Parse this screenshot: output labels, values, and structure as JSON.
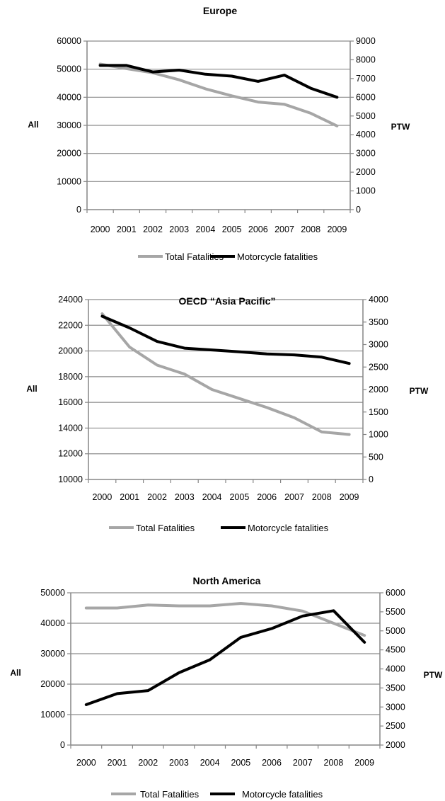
{
  "chart_data": [
    {
      "type": "line",
      "title": "Europe",
      "ylabel": "All",
      "y2label": "PTW",
      "categories": [
        "2000",
        "2001",
        "2002",
        "2003",
        "2004",
        "2005",
        "2006",
        "2007",
        "2008",
        "2009"
      ],
      "ylim": [
        0,
        60000
      ],
      "y2lim": [
        0,
        9000
      ],
      "yticks": [
        "0",
        "10000",
        "20000",
        "30000",
        "40000",
        "50000",
        "60000"
      ],
      "y2ticks": [
        "0",
        "1000",
        "2000",
        "3000",
        "4000",
        "5000",
        "6000",
        "7000",
        "8000",
        "9000"
      ],
      "grid": true,
      "legend": "bottom",
      "series": [
        {
          "name": "Total Fatalities",
          "axis": "left",
          "color": "#a6a6a6",
          "values": [
            51800,
            50200,
            48700,
            46200,
            43000,
            40500,
            38300,
            37500,
            34300,
            29800
          ]
        },
        {
          "name": "Motorcycle fatalities",
          "axis": "right",
          "color": "#000000",
          "values": [
            7700,
            7700,
            7350,
            7450,
            7230,
            7130,
            6850,
            7180,
            6480,
            6000
          ]
        }
      ]
    },
    {
      "type": "line",
      "title": "OECD “Asia Pacific”",
      "ylabel": "All",
      "y2label": "PTW",
      "categories": [
        "2000",
        "2001",
        "2002",
        "2003",
        "2004",
        "2005",
        "2006",
        "2007",
        "2008",
        "2009"
      ],
      "ylim": [
        10000,
        24000
      ],
      "y2lim": [
        0,
        4000
      ],
      "yticks": [
        "10000",
        "12000",
        "14000",
        "16000",
        "18000",
        "20000",
        "22000",
        "24000"
      ],
      "y2ticks": [
        "0",
        "500",
        "1000",
        "1500",
        "2000",
        "2500",
        "3000",
        "3500",
        "4000"
      ],
      "grid": true,
      "legend": "bottom",
      "series": [
        {
          "name": "Total Fatalities",
          "axis": "left",
          "color": "#a6a6a6",
          "values": [
            22900,
            20300,
            18900,
            18200,
            17000,
            16300,
            15600,
            14800,
            13700,
            13500
          ]
        },
        {
          "name": "Motorcycle fatalities",
          "axis": "right",
          "color": "#000000",
          "values": [
            3630,
            3370,
            3070,
            2920,
            2880,
            2840,
            2790,
            2770,
            2720,
            2580
          ]
        }
      ]
    },
    {
      "type": "line",
      "title": "North America",
      "ylabel": "All",
      "y2label": "PTW",
      "categories": [
        "2000",
        "2001",
        "2002",
        "2003",
        "2004",
        "2005",
        "2006",
        "2007",
        "2008",
        "2009"
      ],
      "ylim": [
        0,
        50000
      ],
      "y2lim": [
        2000,
        6000
      ],
      "yticks": [
        "0",
        "10000",
        "20000",
        "30000",
        "40000",
        "50000"
      ],
      "y2ticks": [
        "2000",
        "2500",
        "3000",
        "3500",
        "4000",
        "4500",
        "5000",
        "5500",
        "6000"
      ],
      "grid": true,
      "legend": "bottom",
      "series": [
        {
          "name": "Total Fatalities",
          "axis": "left",
          "color": "#a6a6a6",
          "values": [
            45000,
            45000,
            46000,
            45700,
            45700,
            46500,
            45700,
            44000,
            40000,
            36000
          ]
        },
        {
          "name": "Motorcycle fatalities",
          "axis": "right",
          "color": "#000000",
          "values": [
            3060,
            3350,
            3430,
            3900,
            4240,
            4830,
            5060,
            5390,
            5530,
            4700
          ]
        }
      ]
    }
  ]
}
